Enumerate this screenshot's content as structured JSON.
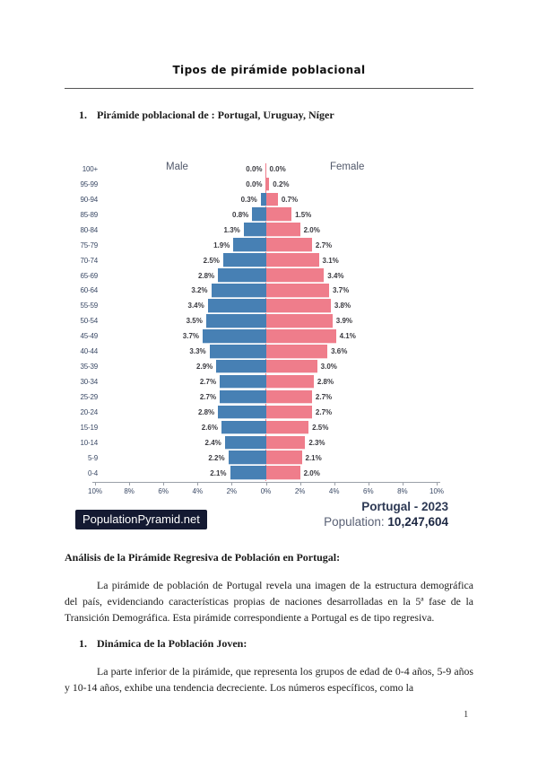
{
  "document": {
    "title": "Tipos de pirámide poblacional",
    "page_number": "1"
  },
  "sections": {
    "item1": {
      "number": "1.",
      "heading": "Pirámide poblacional de : Portugal, Uruguay, Níger"
    },
    "item2": {
      "number": "1.",
      "heading": "Dinámica de la Población Joven:",
      "paragraph": "La parte inferior de la pirámide, que representa los grupos de edad de 0-4 años, 5-9 años y 10-14 años, exhibe una tendencia decreciente. Los números específicos, como la"
    }
  },
  "analysis": {
    "heading": "Análisis de la Pirámide Regresiva de Población en Portugal:",
    "paragraph": "La pirámide de población de Portugal revela una imagen de la estructura demográfica del país, evidenciando características propias de naciones desarrolladas en la 5ª fase de la Transición Demográfica. Esta pirámide correspondiente a Portugal es de tipo regresiva."
  },
  "chart_footer": {
    "brand": "PopulationPyramid.net",
    "brand_bg": "#141a32",
    "title": "Portugal - 2023",
    "population_label": "Population:",
    "population_value": "10,247,604"
  },
  "chart_data": {
    "type": "bar",
    "subtype": "population-pyramid",
    "title": "Portugal - 2023",
    "male_label": "Male",
    "female_label": "Female",
    "unit": "% of total population",
    "age_groups": [
      "100+",
      "95-99",
      "90-94",
      "85-89",
      "80-84",
      "75-79",
      "70-74",
      "65-69",
      "60-64",
      "55-59",
      "50-54",
      "45-49",
      "40-44",
      "35-39",
      "30-34",
      "25-29",
      "20-24",
      "15-19",
      "10-14",
      "5-9",
      "0-4"
    ],
    "series": [
      {
        "name": "Male",
        "color": "#4780b4",
        "values_pct": [
          0.0,
          0.0,
          0.3,
          0.8,
          1.3,
          1.9,
          2.5,
          2.8,
          3.2,
          3.4,
          3.5,
          3.7,
          3.3,
          2.9,
          2.7,
          2.7,
          2.8,
          2.6,
          2.4,
          2.2,
          2.1
        ]
      },
      {
        "name": "Female",
        "color": "#ef7d8b",
        "values_pct": [
          0.0,
          0.2,
          0.7,
          1.5,
          2.0,
          2.7,
          3.1,
          3.4,
          3.7,
          3.8,
          3.9,
          4.1,
          3.6,
          3.0,
          2.8,
          2.7,
          2.7,
          2.5,
          2.3,
          2.1,
          2.0
        ]
      }
    ],
    "x_axis_ticks": [
      "10%",
      "8%",
      "6%",
      "4%",
      "2%",
      "0%",
      "2%",
      "4%",
      "6%",
      "8%",
      "10%"
    ],
    "x_tick_values": [
      -10,
      -8,
      -6,
      -4,
      -2,
      0,
      2,
      4,
      6,
      8,
      10
    ],
    "xlim_pct": [
      -10,
      10
    ],
    "grid": false,
    "legend_position": "top-inside"
  }
}
